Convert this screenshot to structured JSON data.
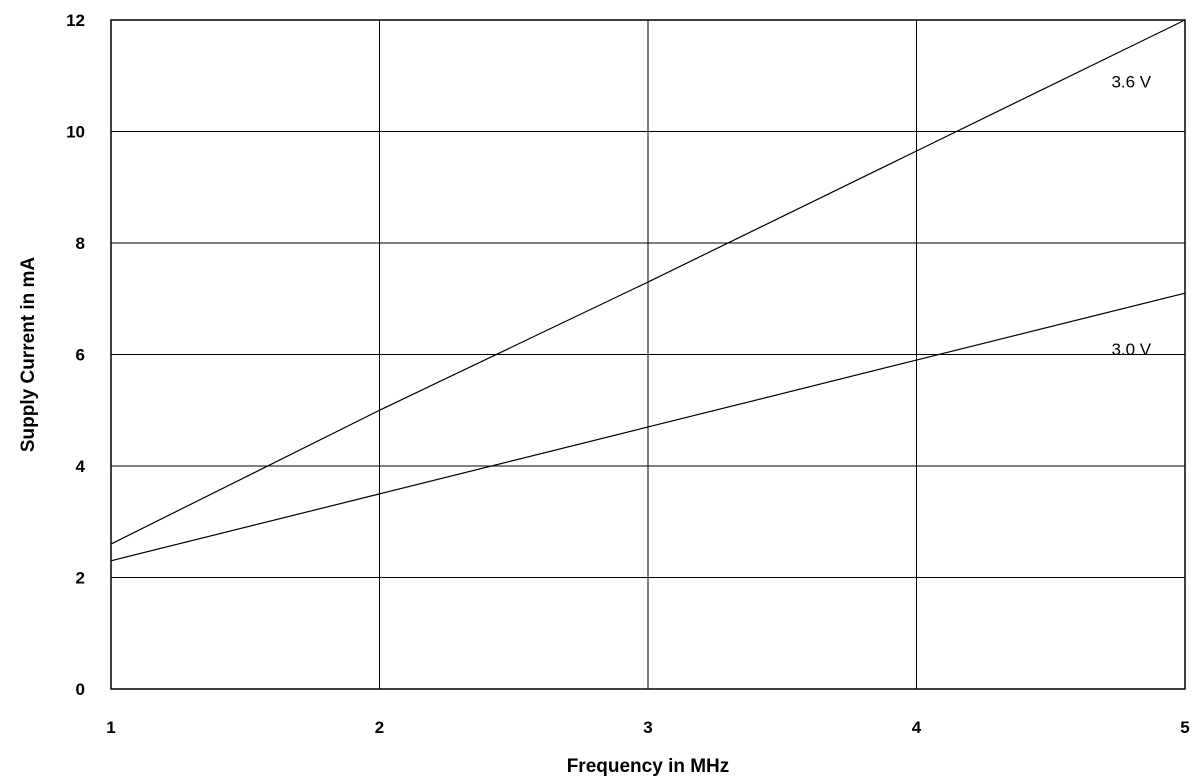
{
  "chart_data": {
    "type": "line",
    "title": "",
    "xlabel": "Frequency in MHz",
    "ylabel": "Supply Current in mA",
    "xlim": [
      1,
      5
    ],
    "ylim": [
      0,
      12
    ],
    "xticks": [
      1,
      2,
      3,
      4,
      5
    ],
    "yticks": [
      0,
      2,
      4,
      6,
      8,
      10,
      12
    ],
    "grid": true,
    "legend": "none",
    "series": [
      {
        "name": "3.6 V",
        "x": [
          1,
          2,
          3,
          4,
          5
        ],
        "y": [
          2.6,
          5.0,
          7.3,
          9.65,
          12.0
        ],
        "label_at": [
          4.8,
          10.9
        ]
      },
      {
        "name": "3.0 V",
        "x": [
          1,
          2,
          3,
          4,
          5
        ],
        "y": [
          2.3,
          3.5,
          4.7,
          5.9,
          7.1
        ],
        "label_at": [
          4.8,
          6.1
        ]
      }
    ]
  }
}
